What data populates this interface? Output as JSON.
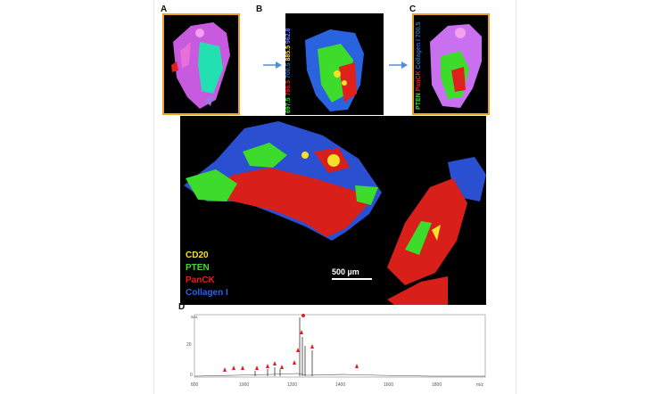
{
  "panels": {
    "a": {
      "letter": "A"
    },
    "b": {
      "letter": "B",
      "mz_labels": [
        "697.5",
        "786.5",
        "700.5",
        "885.5",
        "962.8"
      ]
    },
    "c": {
      "letter": "C",
      "stain_labels": [
        "PTEN",
        "PanCK",
        "Collagen I",
        "700.5"
      ]
    },
    "d": {
      "letter": "D"
    }
  },
  "main": {
    "legend": [
      {
        "label": "CD20",
        "color": "#f5e12a"
      },
      {
        "label": "PTEN",
        "color": "#3ddc2c"
      },
      {
        "label": "PanCK",
        "color": "#e0201c"
      },
      {
        "label": "Collagen I",
        "color": "#2a63e0"
      }
    ],
    "scale_label": "500 µm"
  },
  "spectrum": {
    "y_axis_title": "a.u.",
    "y_ticks": [
      "20",
      "0"
    ],
    "x_axis_title": "m/z",
    "x_ticks": [
      "800",
      "1000",
      "1200",
      "1400",
      "1600",
      "1800"
    ]
  },
  "colors": {
    "frame": "#f0a11f",
    "arrow": "#4a90d9",
    "marker": "#e21c1c"
  }
}
